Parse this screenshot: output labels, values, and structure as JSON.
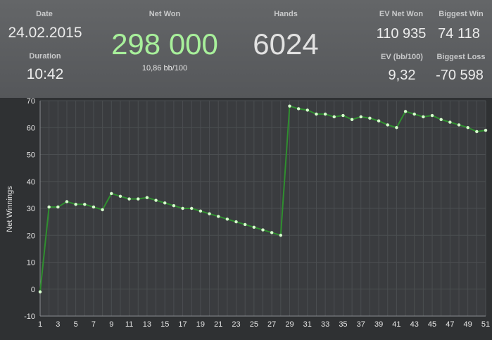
{
  "stats": {
    "date_label": "Date",
    "date_value": "24.02.2015",
    "duration_label": "Duration",
    "duration_value": "10:42",
    "net_won_label": "Net Won",
    "net_won_value": "298 000",
    "net_won_sub": "10,86 bb/100",
    "hands_label": "Hands",
    "hands_value": "6024",
    "ev_net_won_label": "EV Net Won",
    "ev_net_won_value": "110 935",
    "biggest_win_label": "Biggest Win",
    "biggest_win_value": "74 118",
    "ev_bb100_label": "EV (bb/100)",
    "ev_bb100_value": "9,32",
    "biggest_loss_label": "Biggest Loss",
    "biggest_loss_value": "-70 598"
  },
  "colors": {
    "net_won": "#a8f09b",
    "line": "#2f8f2f",
    "marker": "#d8ffcf"
  },
  "chart_data": {
    "type": "line",
    "ylabel": "Net Winnings",
    "xlabel": "",
    "xlim": [
      1,
      51
    ],
    "ylim": [
      -10,
      70
    ],
    "yticks": [
      -10,
      0,
      10,
      20,
      30,
      40,
      50,
      60,
      70
    ],
    "xticks": [
      1,
      3,
      5,
      7,
      9,
      11,
      13,
      15,
      17,
      19,
      21,
      23,
      25,
      27,
      29,
      31,
      33,
      35,
      37,
      39,
      41,
      43,
      45,
      47,
      49,
      51
    ],
    "grid": true,
    "series": [
      {
        "x": [
          1,
          2,
          3,
          4,
          5,
          6,
          7,
          8,
          9,
          10,
          11,
          12,
          13,
          14,
          15,
          16,
          17,
          18,
          19,
          20,
          21,
          22,
          23,
          24,
          25,
          26,
          27,
          28,
          29,
          30,
          31,
          32,
          33,
          34,
          35,
          36,
          37,
          38,
          39,
          40,
          41,
          42,
          43,
          44,
          45,
          46,
          47,
          48,
          49,
          50,
          51
        ],
        "y": [
          -1,
          30.5,
          30.5,
          32.5,
          31.5,
          31.5,
          30.5,
          29.5,
          35.5,
          34.5,
          33.5,
          33.5,
          34,
          33,
          32,
          31,
          30,
          30,
          29,
          28,
          27,
          26,
          25,
          24,
          23,
          22,
          21,
          20,
          68,
          67,
          66.5,
          65,
          65,
          64,
          64.5,
          63,
          64,
          63.5,
          62.5,
          61,
          60,
          66,
          65,
          64,
          64.5,
          63,
          62,
          61,
          60,
          58.5,
          59
        ]
      }
    ]
  }
}
